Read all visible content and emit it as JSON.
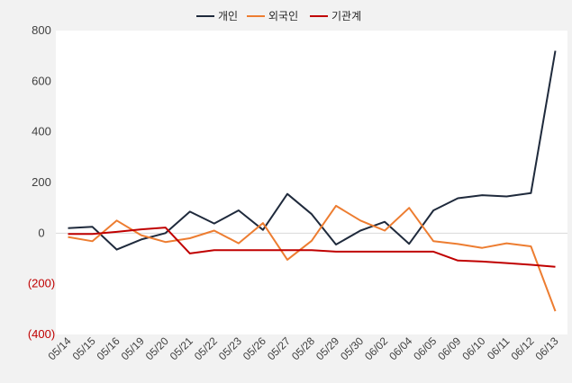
{
  "chart_data": {
    "type": "line",
    "title": "",
    "xlabel": "",
    "ylabel": "",
    "ylim": [
      -400,
      800
    ],
    "yticks": [
      800,
      600,
      400,
      200,
      0,
      -200,
      -400
    ],
    "ytick_labels": [
      "800",
      "600",
      "400",
      "200",
      "0",
      "(200)",
      "(400)"
    ],
    "grid": false,
    "legend": "top",
    "categories": [
      "05/14",
      "05/15",
      "05/16",
      "05/19",
      "05/20",
      "05/21",
      "05/22",
      "05/23",
      "05/26",
      "05/27",
      "05/28",
      "05/29",
      "05/30",
      "06/02",
      "06/04",
      "06/05",
      "06/09",
      "06/10",
      "06/11",
      "06/12",
      "06/13"
    ],
    "series": [
      {
        "name": "개인",
        "color": "#1f2a3c",
        "values": [
          20,
          25,
          -65,
          -25,
          0,
          85,
          38,
          90,
          13,
          155,
          75,
          -45,
          10,
          45,
          -42,
          90,
          138,
          150,
          145,
          158,
          720
        ]
      },
      {
        "name": "외국인",
        "color": "#ed7d31",
        "values": [
          -15,
          -32,
          50,
          -8,
          -35,
          -20,
          10,
          -40,
          40,
          -105,
          -30,
          108,
          50,
          10,
          100,
          -32,
          -43,
          -58,
          -40,
          -52,
          -308
        ]
      },
      {
        "name": "기관계",
        "color": "#c00000",
        "values": [
          -3,
          -3,
          5,
          15,
          22,
          -80,
          -67,
          -67,
          -67,
          -67,
          -67,
          -73,
          -73,
          -73,
          -73,
          -73,
          -108,
          -112,
          -118,
          -125,
          -133
        ]
      }
    ]
  }
}
